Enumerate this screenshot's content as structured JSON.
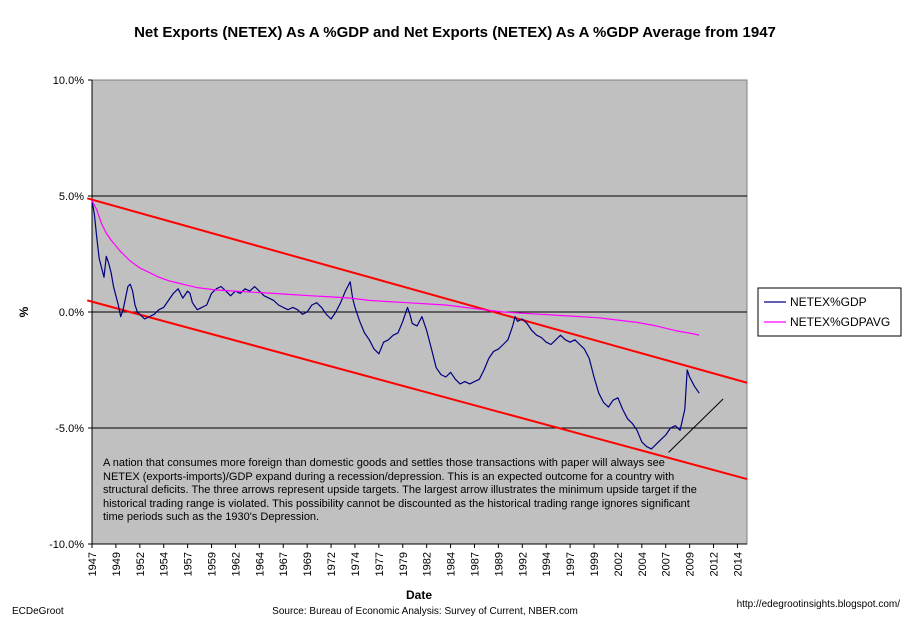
{
  "chart_data": {
    "type": "line",
    "title": "Net Exports (NETEX) As A %GDP and Net Exports (NETEX) As A %GDP Average from 1947",
    "xlabel": "Date",
    "ylabel": "%",
    "ylim": [
      -10,
      10
    ],
    "xlim": [
      1947,
      2015.5
    ],
    "yticks": [
      "10.0%",
      "5.0%",
      "0.0%",
      "-5.0%",
      "-10.0%"
    ],
    "ytick_values": [
      10,
      5,
      0,
      -5,
      -10
    ],
    "xticks": [
      "1947",
      "1949",
      "1952",
      "1954",
      "1957",
      "1959",
      "1962",
      "1964",
      "1967",
      "1969",
      "1972",
      "1974",
      "1977",
      "1979",
      "1982",
      "1984",
      "1987",
      "1989",
      "1992",
      "1994",
      "1997",
      "1999",
      "2002",
      "2004",
      "2007",
      "2009",
      "2012",
      "2014"
    ],
    "xtick_values": [
      1947,
      1949.5,
      1952,
      1954.5,
      1957,
      1959.5,
      1962,
      1964.5,
      1967,
      1969.5,
      1972,
      1974.5,
      1977,
      1979.5,
      1982,
      1984.5,
      1987,
      1989.5,
      1992,
      1994.5,
      1997,
      1999.5,
      2002,
      2004.5,
      2007,
      2009.5,
      2012,
      2014.5
    ],
    "grid": "horizontal",
    "background": "#c0c0c0",
    "legend_position": "right",
    "series": [
      {
        "name": "NETEX%GDP",
        "color": "#000080",
        "x": [
          1947,
          1947.25,
          1947.5,
          1947.75,
          1948,
          1948.25,
          1948.5,
          1948.75,
          1949,
          1949.25,
          1949.5,
          1949.75,
          1950,
          1950.25,
          1950.5,
          1950.75,
          1951,
          1951.25,
          1951.5,
          1951.75,
          1952,
          1952.5,
          1953,
          1953.5,
          1954,
          1954.5,
          1955,
          1955.5,
          1956,
          1956.5,
          1957,
          1957.25,
          1957.5,
          1958,
          1958.5,
          1959,
          1959.5,
          1960,
          1960.5,
          1961,
          1961.5,
          1962,
          1962.5,
          1963,
          1963.5,
          1964,
          1964.5,
          1965,
          1965.5,
          1966,
          1966.5,
          1967,
          1967.5,
          1968,
          1968.5,
          1969,
          1969.5,
          1970,
          1970.5,
          1971,
          1971.5,
          1972,
          1972.5,
          1973,
          1973.5,
          1974,
          1974.25,
          1974.5,
          1975,
          1975.5,
          1976,
          1976.5,
          1977,
          1977.5,
          1978,
          1978.5,
          1979,
          1979.5,
          1980,
          1980.25,
          1980.5,
          1981,
          1981.5,
          1982,
          1982.5,
          1983,
          1983.5,
          1984,
          1984.5,
          1985,
          1985.5,
          1986,
          1986.5,
          1987,
          1987.5,
          1988,
          1988.5,
          1989,
          1989.5,
          1990,
          1990.5,
          1991,
          1991.25,
          1991.5,
          1992,
          1992.5,
          1993,
          1993.5,
          1994,
          1994.5,
          1995,
          1995.5,
          1996,
          1996.5,
          1997,
          1997.5,
          1998,
          1998.5,
          1999,
          1999.5,
          2000,
          2000.5,
          2001,
          2001.5,
          2002,
          2002.5,
          2003,
          2003.5,
          2004,
          2004.5,
          2005,
          2005.5,
          2006,
          2006.5,
          2007,
          2007.5,
          2008,
          2008.5,
          2009,
          2009.25,
          2009.5,
          2010,
          2010.5
        ],
        "y": [
          4.8,
          4.2,
          3.2,
          2.3,
          1.9,
          1.5,
          2.4,
          2.1,
          1.7,
          1.1,
          0.7,
          0.3,
          -0.2,
          0.1,
          0.6,
          1.1,
          1.2,
          0.9,
          0.3,
          0.0,
          -0.1,
          -0.3,
          -0.2,
          -0.1,
          0.1,
          0.2,
          0.5,
          0.8,
          1.0,
          0.6,
          0.9,
          0.8,
          0.4,
          0.1,
          0.2,
          0.3,
          0.8,
          1.0,
          1.1,
          0.9,
          0.7,
          0.9,
          0.8,
          1.0,
          0.9,
          1.1,
          0.9,
          0.7,
          0.6,
          0.5,
          0.3,
          0.2,
          0.1,
          0.2,
          0.1,
          -0.1,
          0.0,
          0.3,
          0.4,
          0.2,
          -0.1,
          -0.3,
          0.0,
          0.4,
          0.9,
          1.3,
          0.6,
          0.2,
          -0.4,
          -0.9,
          -1.2,
          -1.6,
          -1.8,
          -1.3,
          -1.2,
          -1.0,
          -0.9,
          -0.4,
          0.2,
          -0.1,
          -0.5,
          -0.6,
          -0.2,
          -0.8,
          -1.6,
          -2.4,
          -2.7,
          -2.8,
          -2.6,
          -2.9,
          -3.1,
          -3.0,
          -3.1,
          -3.0,
          -2.9,
          -2.5,
          -2.0,
          -1.7,
          -1.6,
          -1.4,
          -1.2,
          -0.6,
          -0.2,
          -0.4,
          -0.3,
          -0.5,
          -0.8,
          -1.0,
          -1.1,
          -1.3,
          -1.4,
          -1.2,
          -1.0,
          -1.2,
          -1.3,
          -1.2,
          -1.4,
          -1.6,
          -2.0,
          -2.8,
          -3.5,
          -3.9,
          -4.1,
          -3.8,
          -3.7,
          -4.2,
          -4.6,
          -4.8,
          -5.1,
          -5.6,
          -5.8,
          -5.9,
          -5.7,
          -5.5,
          -5.3,
          -5.0,
          -4.9,
          -5.1,
          -4.2,
          -2.5,
          -2.8,
          -3.2,
          -3.5
        ]
      },
      {
        "name": "NETEX%GDPAVG",
        "color": "#ff00ff",
        "x": [
          1947,
          1947.5,
          1948,
          1948.5,
          1949,
          1950,
          1951,
          1952,
          1953,
          1954,
          1955,
          1956,
          1957,
          1958,
          1960,
          1962,
          1964,
          1966,
          1968,
          1970,
          1972,
          1974,
          1976,
          1978,
          1980,
          1982,
          1984,
          1986,
          1988,
          1990,
          1992,
          1994,
          1996,
          1998,
          2000,
          2002,
          2004,
          2006,
          2008,
          2010,
          2010.5
        ],
        "y": [
          4.8,
          4.4,
          3.8,
          3.4,
          3.1,
          2.6,
          2.2,
          1.9,
          1.7,
          1.5,
          1.35,
          1.25,
          1.15,
          1.05,
          0.95,
          0.9,
          0.85,
          0.8,
          0.75,
          0.7,
          0.65,
          0.6,
          0.5,
          0.45,
          0.4,
          0.35,
          0.3,
          0.2,
          0.1,
          0.0,
          -0.05,
          -0.1,
          -0.15,
          -0.2,
          -0.25,
          -0.35,
          -0.45,
          -0.6,
          -0.8,
          -0.95,
          -1.0
        ]
      }
    ],
    "trend_lines": [
      {
        "color": "#ff0000",
        "from": [
          1946.5,
          4.9
        ],
        "to": [
          2015.5,
          -3.05
        ]
      },
      {
        "color": "#ff0000",
        "from": [
          1946.5,
          0.5
        ],
        "to": [
          2015.5,
          -7.2
        ]
      },
      {
        "color": "#000000",
        "from": [
          2007.3,
          -6.05
        ],
        "to": [
          2013.0,
          -3.75
        ]
      }
    ],
    "legend": [
      "NETEX%GDP",
      "NETEX%GDPAVG"
    ],
    "annotation": "A nation that consumes more foreign than domestic goods and settles those transactions with paper will always see NETEX (exports-imports)/GDP expand during a recession/depression.  This is an expected outcome for a country with structural deficits.  The three arrows represent upside targets.  The largest arrow illustrates the minimum upside target if the historical trading range is violated.  This possibility cannot be discounted as the historical trading range ignores significant time periods such as the 1930's Depression.",
    "footer_left": "ECDeGroot",
    "source": "Source:  Bureau of Economic Analysis: Survey of Current, NBER.com",
    "footer_right": "http://edegrootinsights.blogspot.com/"
  }
}
